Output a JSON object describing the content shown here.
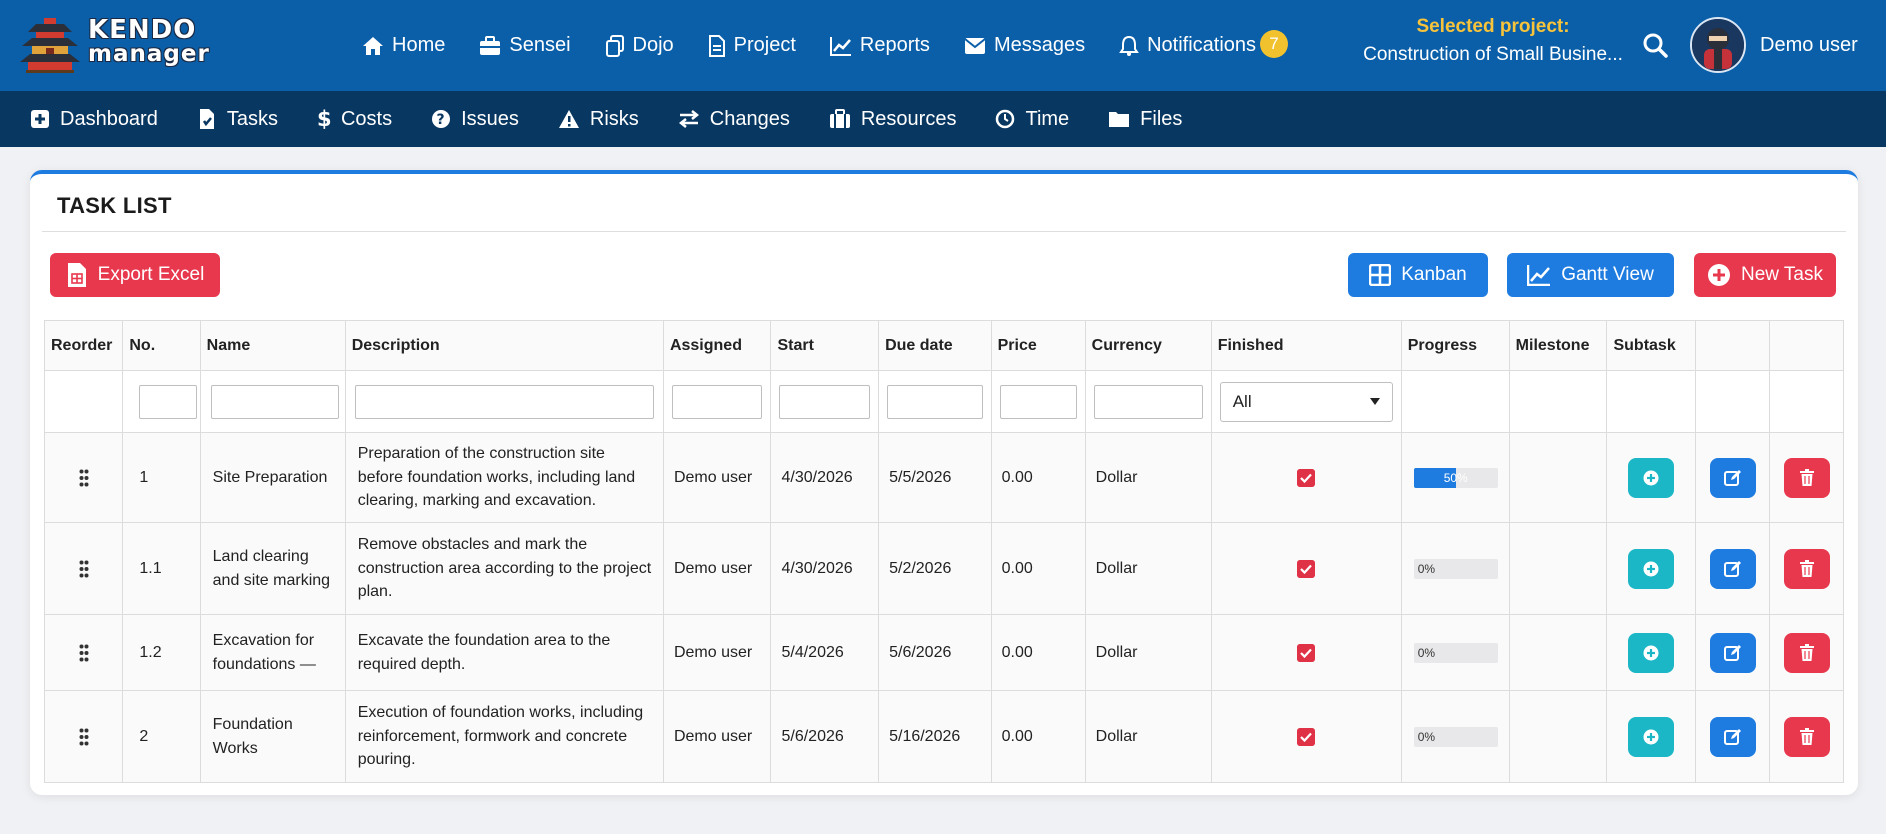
{
  "app": {
    "logo_line1": "KENDO",
    "logo_line2": "manager"
  },
  "topnav": [
    {
      "label": "Home",
      "icon": "home-icon"
    },
    {
      "label": "Sensei",
      "icon": "briefcase-icon"
    },
    {
      "label": "Dojo",
      "icon": "copy-icon"
    },
    {
      "label": "Project",
      "icon": "document-icon"
    },
    {
      "label": "Reports",
      "icon": "chart-line-icon"
    },
    {
      "label": "Messages",
      "icon": "envelope-icon"
    },
    {
      "label": "Notifications",
      "icon": "bell-icon",
      "badge": "7"
    }
  ],
  "project": {
    "label": "Selected project:",
    "value": "Construction of Small Busine..."
  },
  "user": {
    "name": "Demo user"
  },
  "subnav": [
    {
      "label": "Dashboard",
      "icon": "plus-square-icon"
    },
    {
      "label": "Tasks",
      "icon": "tasks-icon"
    },
    {
      "label": "Costs",
      "icon": "dollar-icon"
    },
    {
      "label": "Issues",
      "icon": "question-circle-icon"
    },
    {
      "label": "Risks",
      "icon": "warning-icon"
    },
    {
      "label": "Changes",
      "icon": "exchange-icon"
    },
    {
      "label": "Resources",
      "icon": "toolbox-icon"
    },
    {
      "label": "Time",
      "icon": "clock-icon"
    },
    {
      "label": "Files",
      "icon": "folder-icon"
    }
  ],
  "card": {
    "title": "TASK LIST",
    "export_label": "Export Excel",
    "kanban_label": "Kanban",
    "gantt_label": "Gantt View",
    "new_task_label": "New Task"
  },
  "table": {
    "columns": [
      "Reorder",
      "No.",
      "Name",
      "Description",
      "Assigned",
      "Start",
      "Due date",
      "Price",
      "Currency",
      "Finished",
      "Progress",
      "Milestone",
      "Subtask",
      "",
      ""
    ],
    "finished_filter": "All",
    "rows": [
      {
        "no": "1",
        "name": "Site Preparation",
        "description": "Preparation of the construction site before foundation works, including land clearing, marking and excavation.",
        "assigned": "Demo user",
        "start": "4/30/2026",
        "due": "5/5/2026",
        "price": "0.00",
        "currency": "Dollar",
        "finished": true,
        "progress": 50,
        "progress_label": "50%"
      },
      {
        "no": "1.1",
        "name": "Land clearing and site marking",
        "description": "Remove obstacles and mark the construction area according to the project plan.",
        "assigned": "Demo user",
        "start": "4/30/2026",
        "due": "5/2/2026",
        "price": "0.00",
        "currency": "Dollar",
        "finished": true,
        "progress": 0,
        "progress_label": "0%"
      },
      {
        "no": "1.2",
        "name": "Excavation for foundations —",
        "description": "Excavate the foundation area to the required depth.",
        "assigned": "Demo user",
        "start": "5/4/2026",
        "due": "5/6/2026",
        "price": "0.00",
        "currency": "Dollar",
        "finished": true,
        "progress": 0,
        "progress_label": "0%"
      },
      {
        "no": "2",
        "name": "Foundation Works",
        "description": "Execution of foundation works, including reinforcement, formwork and concrete pouring.",
        "assigned": "Demo user",
        "start": "5/6/2026",
        "due": "5/16/2026",
        "price": "0.00",
        "currency": "Dollar",
        "finished": true,
        "progress": 0,
        "progress_label": "0%"
      }
    ]
  }
}
